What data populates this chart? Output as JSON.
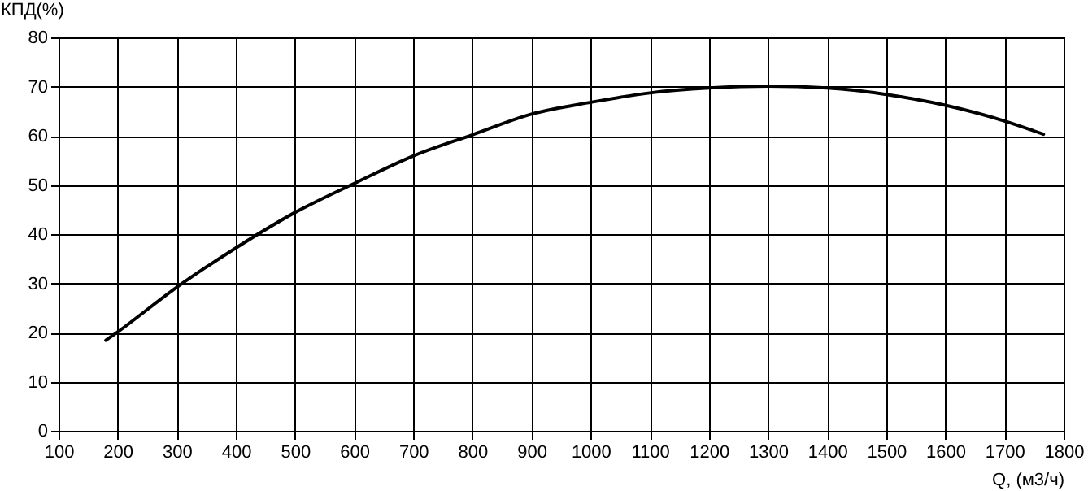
{
  "chart_data": {
    "type": "line",
    "xlabel": "Q, (м3/ч)",
    "ylabel": "КПД(%)",
    "x": [
      180,
      200,
      300,
      400,
      500,
      600,
      700,
      800,
      900,
      1000,
      1100,
      1200,
      1300,
      1400,
      1500,
      1600,
      1700,
      1766
    ],
    "series": [
      {
        "color": "#000000",
        "values": [
          18.4,
          20.1,
          29.2,
          37.2,
          44.4,
          50.3,
          55.9,
          60.2,
          64.4,
          66.8,
          68.7,
          69.7,
          70.1,
          69.7,
          68.4,
          66.2,
          63.0,
          60.3
        ]
      }
    ],
    "xlim": [
      100,
      1800
    ],
    "xticks": [
      100,
      200,
      300,
      400,
      500,
      600,
      700,
      800,
      900,
      1000,
      1100,
      1200,
      1300,
      1400,
      1500,
      1600,
      1700,
      1800
    ],
    "ylim": [
      0,
      80
    ],
    "yticks": [
      0,
      10,
      20,
      30,
      40,
      50,
      60,
      70,
      80
    ],
    "grid": true,
    "marker": "none",
    "line_style": "solid"
  }
}
